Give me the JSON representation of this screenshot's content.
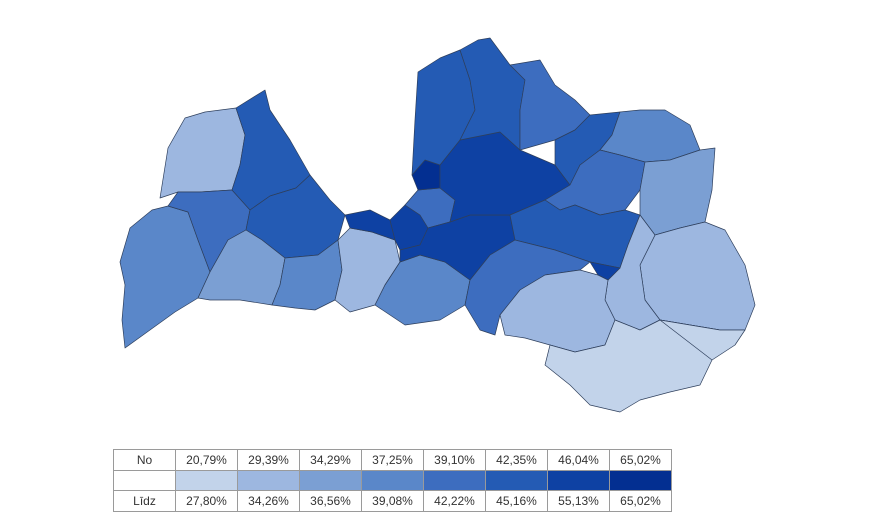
{
  "legend": {
    "row_from_label": "No",
    "row_to_label": "Līdz",
    "bins": [
      {
        "from": "20,79%",
        "to": "27,80%",
        "color": "#c2d3ea"
      },
      {
        "from": "29,39%",
        "to": "34,26%",
        "color": "#9db7e0"
      },
      {
        "from": "34,29%",
        "to": "36,56%",
        "color": "#7b9fd3"
      },
      {
        "from": "37,25%",
        "to": "39,08%",
        "color": "#5a87c9"
      },
      {
        "from": "39,10%",
        "to": "42,22%",
        "color": "#3d6dbf"
      },
      {
        "from": "42,35%",
        "to": "45,16%",
        "color": "#245bb4"
      },
      {
        "from": "46,04%",
        "to": "55,13%",
        "color": "#0e41a3"
      },
      {
        "from": "65,02%",
        "to": "65,02%",
        "color": "#032f91"
      }
    ]
  }
}
